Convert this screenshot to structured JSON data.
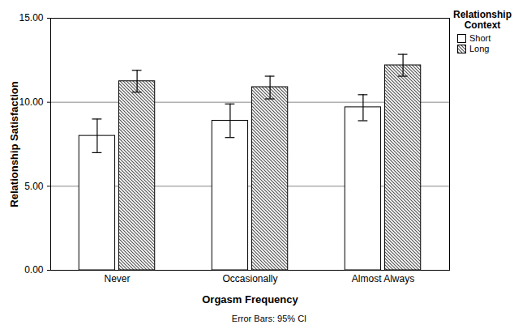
{
  "chart_data": {
    "type": "bar",
    "x_label": "Orgasm Frequency",
    "y_label": "Relationship Satisfaction",
    "legend_title": "Relationship Context",
    "caption": "Error Bars: 95% CI",
    "categories": [
      "Never",
      "Occasionally",
      "Almost Always"
    ],
    "series": [
      {
        "name": "Short",
        "color": "#ffffff",
        "values": [
          8.0,
          8.9,
          9.7
        ],
        "error_low": [
          7.0,
          7.9,
          8.9
        ],
        "error_high": [
          9.0,
          9.9,
          10.45
        ]
      },
      {
        "name": "Long",
        "color": "#555555",
        "values": [
          11.25,
          10.9,
          12.2
        ],
        "error_low": [
          10.6,
          10.2,
          11.55
        ],
        "error_high": [
          11.9,
          11.55,
          12.85
        ]
      }
    ],
    "ylim": [
      0,
      15
    ],
    "yticks": [
      {
        "value": 0,
        "label": "0.00"
      },
      {
        "value": 5,
        "label": "5.00"
      },
      {
        "value": 10,
        "label": "10.00"
      },
      {
        "value": 15,
        "label": "15.00"
      }
    ],
    "grid": true,
    "legend": "top-right"
  }
}
